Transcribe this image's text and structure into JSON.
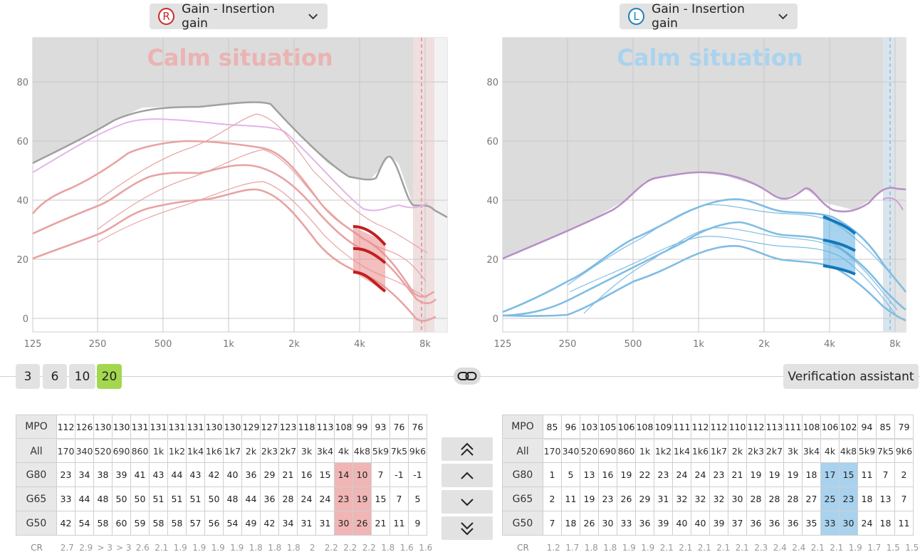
{
  "right": {
    "ear_letter": "R",
    "dropdown_label": "Gain - Insertion gain",
    "situation": "Calm situation",
    "color": "#cc2a2a"
  },
  "left": {
    "ear_letter": "L",
    "dropdown_label": "Gain - Insertion gain",
    "situation": "Calm situation",
    "color": "#1a7fc1"
  },
  "axes": {
    "y_ticks": [
      "80",
      "60",
      "40",
      "20",
      "0"
    ],
    "x_ticks": [
      "125",
      "250",
      "500",
      "1k",
      "2k",
      "4k",
      "8k"
    ]
  },
  "channels": {
    "options": [
      "3",
      "6",
      "10",
      "20"
    ],
    "selected": "20"
  },
  "verification_label": "Verification assistant",
  "table_right": {
    "freqs": [
      "170",
      "340",
      "520",
      "690",
      "860",
      "1k",
      "1k2",
      "1k4",
      "1k6",
      "1k7",
      "2k",
      "2k3",
      "2k7",
      "3k",
      "3k4",
      "4k",
      "4k8",
      "5k9",
      "7k5",
      "9k6"
    ],
    "mpo": [
      "112",
      "126",
      "130",
      "130",
      "131",
      "131",
      "131",
      "131",
      "130",
      "130",
      "129",
      "127",
      "123",
      "118",
      "113",
      "108",
      "99",
      "93",
      "76",
      "76"
    ],
    "g80": [
      "23",
      "34",
      "38",
      "39",
      "41",
      "43",
      "44",
      "43",
      "42",
      "40",
      "36",
      "29",
      "21",
      "16",
      "15",
      "14",
      "10",
      "7",
      "-1",
      "-1"
    ],
    "g65": [
      "33",
      "44",
      "48",
      "50",
      "50",
      "51",
      "51",
      "51",
      "50",
      "48",
      "44",
      "36",
      "28",
      "24",
      "24",
      "23",
      "19",
      "15",
      "7",
      "5"
    ],
    "g50": [
      "42",
      "54",
      "58",
      "60",
      "59",
      "58",
      "58",
      "57",
      "56",
      "54",
      "49",
      "42",
      "34",
      "31",
      "31",
      "30",
      "26",
      "21",
      "11",
      "9"
    ],
    "cr": [
      "2.7",
      "2.9",
      "> 3",
      "> 3",
      "2.6",
      "2.1",
      "1.9",
      "1.9",
      "1.9",
      "1.9",
      "1.8",
      "1.8",
      "1.8",
      "2",
      "2.2",
      "2.2",
      "2.2",
      "1.8",
      "1.6",
      "1.6"
    ]
  },
  "table_left": {
    "freqs": [
      "170",
      "340",
      "520",
      "690",
      "860",
      "1k",
      "1k2",
      "1k4",
      "1k6",
      "1k7",
      "2k",
      "2k3",
      "2k7",
      "3k",
      "3k4",
      "4k",
      "4k8",
      "5k9",
      "7k5",
      "9k6"
    ],
    "mpo": [
      "85",
      "96",
      "103",
      "105",
      "106",
      "108",
      "109",
      "111",
      "112",
      "112",
      "110",
      "112",
      "113",
      "111",
      "108",
      "106",
      "102",
      "94",
      "85",
      "79"
    ],
    "g80": [
      "1",
      "5",
      "13",
      "16",
      "19",
      "22",
      "23",
      "24",
      "24",
      "23",
      "21",
      "19",
      "19",
      "19",
      "18",
      "17",
      "15",
      "11",
      "7",
      "2"
    ],
    "g65": [
      "2",
      "11",
      "19",
      "23",
      "26",
      "29",
      "31",
      "32",
      "32",
      "32",
      "30",
      "28",
      "28",
      "28",
      "27",
      "25",
      "23",
      "18",
      "13",
      "7"
    ],
    "g50": [
      "7",
      "18",
      "26",
      "30",
      "33",
      "36",
      "39",
      "40",
      "40",
      "39",
      "37",
      "36",
      "36",
      "36",
      "35",
      "33",
      "30",
      "24",
      "18",
      "11"
    ],
    "cr": [
      "1.2",
      "1.7",
      "1.8",
      "1.8",
      "1.9",
      "1.9",
      "2.1",
      "2.1",
      "2.1",
      "2.1",
      "2.1",
      "2.3",
      "2.4",
      "2.4",
      "2.1",
      "2.1",
      "1.9",
      "1.7",
      "1.5",
      "1.5"
    ]
  },
  "row_labels": {
    "mpo": "MPO",
    "all": "All",
    "g80": "G80",
    "g65": "G65",
    "g50": "G50",
    "cr": "CR"
  },
  "chart_data": [
    {
      "type": "line",
      "title": "Calm situation",
      "ear": "R",
      "x": [
        "125",
        "250",
        "500",
        "1k",
        "2k",
        "4k",
        "8k"
      ],
      "ylim": [
        -4,
        95
      ],
      "grid": true,
      "series": [
        {
          "values_approx": [
            52,
            64,
            71,
            71,
            58,
            38,
            40
          ]
        },
        {
          "values_approx": [
            48,
            58,
            66,
            65,
            56,
            37,
            37
          ]
        },
        {
          "values_approx": [
            35,
            48,
            59,
            58,
            45,
            31,
            9
          ]
        },
        {
          "values_approx": [
            28,
            38,
            48,
            50,
            37,
            23,
            5
          ]
        },
        {
          "values_approx": [
            20,
            27,
            38,
            43,
            27,
            15,
            -1
          ]
        }
      ],
      "highlight_band": {
        "from": "4k",
        "to": "5k",
        "top": 31,
        "bottom": 15
      }
    },
    {
      "type": "line",
      "title": "Calm situation",
      "ear": "L",
      "x": [
        "125",
        "250",
        "500",
        "1k",
        "2k",
        "4k",
        "8k"
      ],
      "ylim": [
        -4,
        95
      ],
      "grid": true,
      "series": [
        {
          "values_approx": [
            20,
            31,
            45,
            49,
            41,
            38,
            44
          ]
        },
        {
          "values_approx": [
            1,
            12,
            25,
            35,
            38,
            35,
            8
          ]
        },
        {
          "values_approx": [
            1,
            5,
            18,
            28,
            31,
            27,
            4
          ]
        },
        {
          "values_approx": [
            0,
            1,
            12,
            19,
            23,
            19,
            1
          ]
        }
      ],
      "highlight_band": {
        "from": "4k",
        "to": "5k",
        "top": 34,
        "bottom": 17
      }
    }
  ]
}
